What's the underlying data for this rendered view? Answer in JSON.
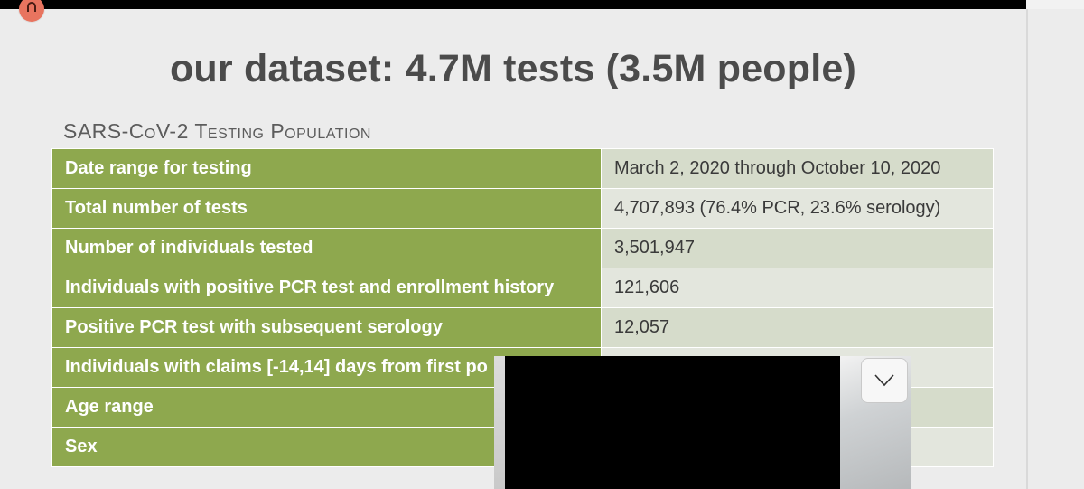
{
  "slide": {
    "title": "our dataset: 4.7M tests (3.5M people)",
    "subtitle": "SARS-CoV-2 Testing Population",
    "rows": [
      {
        "label": "Date range for testing",
        "value": "March 2, 2020 through October 10, 2020"
      },
      {
        "label": "Total number of tests",
        "value": "4,707,893 (76.4% PCR, 23.6% serology)"
      },
      {
        "label": "Number of individuals tested",
        "value": "3,501,947"
      },
      {
        "label": "Individuals with positive PCR test and enrollment history",
        "value": "121,606"
      },
      {
        "label": "Positive PCR test with subsequent serology",
        "value": "12,057"
      },
      {
        "label": "Individuals with claims [-14,14] days from first po",
        "value": ""
      },
      {
        "label": "Age range",
        "value": ""
      },
      {
        "label": "Sex",
        "value": ""
      }
    ]
  },
  "overlay": {
    "record_indicator_icon": "recording-icon",
    "video_preview": "video-thumbnail",
    "collapse_icon": "chevron-down-icon"
  },
  "colors": {
    "label_bg": "#8ea84e",
    "value_bg": "#d6dccb",
    "title": "#4b4b4b",
    "record": "#e8745f"
  }
}
